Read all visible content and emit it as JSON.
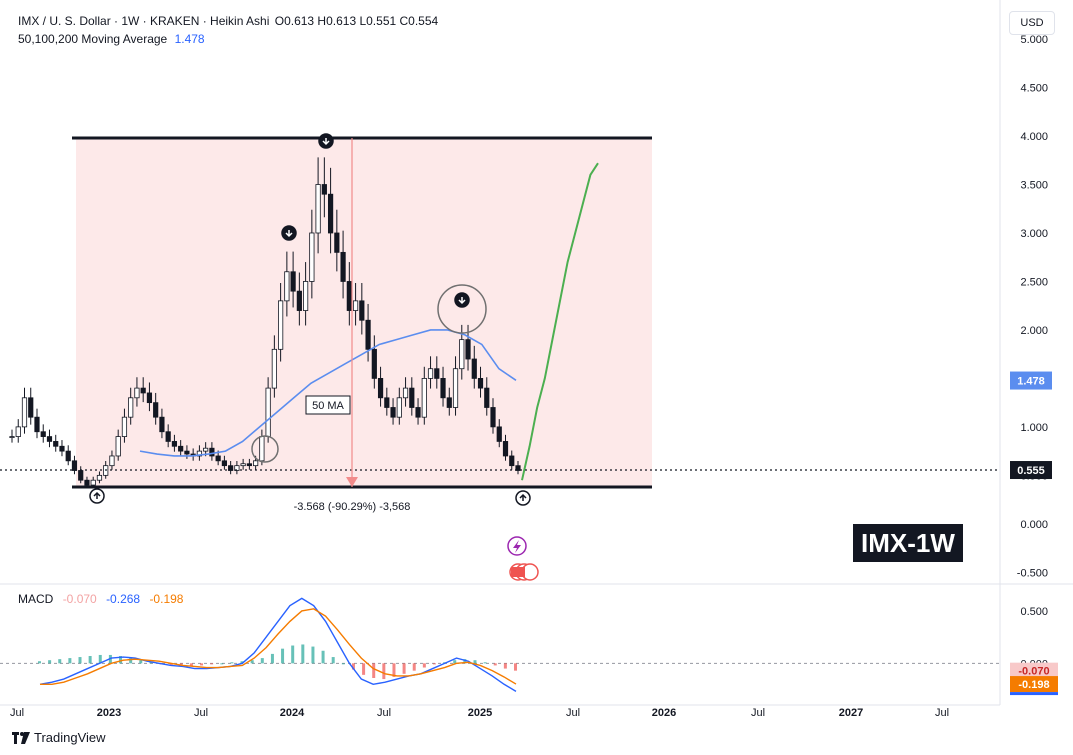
{
  "header": {
    "symbol_line": "IMX / U. S. Dollar · 1W · KRAKEN · Heikin Ashi",
    "ohlc": "O0.613  H0.613  L0.551  C0.554",
    "ma_label": "50,100,200 Moving Average",
    "ma_value": "1.478"
  },
  "currency_button": "USD",
  "watermark": "IMX-1W",
  "macd": {
    "label": "MACD",
    "hist_value": "-0.070",
    "macd_value": "-0.268",
    "signal_value": "-0.198"
  },
  "footer": {
    "brand": "TradingView"
  },
  "colors": {
    "up": "#26a69a",
    "down": "#ef5350",
    "ma": "#5b8def",
    "signal": "#f57c00",
    "macd": "#2962ff",
    "range_fill": "#fce4e4",
    "projection": "#4caf50"
  },
  "chart_data": [
    {
      "type": "candlestick",
      "title": "",
      "y_axis_ticks": [
        "5.000",
        "4.500",
        "4.000",
        "3.500",
        "3.000",
        "2.500",
        "2.000",
        "1.500",
        "1.000",
        "0.500",
        "0.000",
        "-0.500"
      ],
      "ylim": [
        -0.6,
        5.3
      ],
      "x_axis_ticks": [
        "Jul",
        "2023",
        "Jul",
        "2024",
        "Jul",
        "2025",
        "Jul",
        "2026",
        "Jul",
        "2027",
        "Jul"
      ],
      "x_axis_bold": [
        "2023",
        "2024",
        "2025",
        "2026",
        "2027"
      ],
      "price_labels": {
        "ma": "1.478",
        "last": "0.555"
      },
      "range_top": 3.98,
      "range_bottom": 0.38,
      "measure_text": "-3.568 (-90.29%) -3,568",
      "ma_tag": "50 MA",
      "close_series": [
        0.9,
        1.0,
        1.3,
        1.1,
        0.95,
        0.9,
        0.85,
        0.8,
        0.75,
        0.65,
        0.55,
        0.45,
        0.4,
        0.45,
        0.5,
        0.6,
        0.7,
        0.9,
        1.1,
        1.3,
        1.4,
        1.35,
        1.25,
        1.1,
        0.95,
        0.85,
        0.8,
        0.75,
        0.72,
        0.7,
        0.75,
        0.78,
        0.7,
        0.65,
        0.6,
        0.55,
        0.6,
        0.62,
        0.6,
        0.65,
        0.9,
        1.4,
        1.8,
        2.3,
        2.6,
        2.4,
        2.2,
        2.5,
        3.0,
        3.5,
        3.4,
        3.0,
        2.8,
        2.5,
        2.2,
        2.3,
        2.1,
        1.8,
        1.5,
        1.3,
        1.2,
        1.1,
        1.3,
        1.4,
        1.2,
        1.1,
        1.5,
        1.6,
        1.5,
        1.3,
        1.2,
        1.6,
        1.9,
        1.7,
        1.5,
        1.4,
        1.2,
        1.0,
        0.85,
        0.7,
        0.6,
        0.55
      ],
      "ma_series": [
        0.75,
        0.72,
        0.7,
        0.7,
        0.72,
        0.75,
        0.85,
        1.0,
        1.15,
        1.3,
        1.45,
        1.55,
        1.65,
        1.75,
        1.85,
        1.9,
        1.95,
        2.0,
        2.0,
        1.95,
        1.85,
        1.6,
        1.48
      ],
      "projection_series": [
        0.45,
        0.8,
        1.2,
        1.5,
        1.9,
        2.3,
        2.7,
        3.0,
        3.3,
        3.6,
        3.72
      ],
      "events": [
        {
          "kind": "down",
          "label": ""
        },
        {
          "kind": "down",
          "label": ""
        },
        {
          "kind": "down",
          "label": ""
        },
        {
          "kind": "up",
          "label": ""
        },
        {
          "kind": "up",
          "label": ""
        }
      ]
    },
    {
      "type": "bar",
      "title": "MACD",
      "y_axis_ticks": [
        "0.500",
        "0.000"
      ],
      "ylim": [
        -0.35,
        0.7
      ],
      "price_labels": {
        "hist": "-0.070",
        "signal": "-0.198"
      },
      "histogram": [
        0.02,
        0.03,
        0.04,
        0.05,
        0.06,
        0.07,
        0.08,
        0.08,
        0.07,
        0.05,
        0.03,
        0.01,
        -0.01,
        -0.02,
        -0.03,
        -0.03,
        -0.02,
        -0.01,
        0.0,
        0.01,
        0.02,
        0.03,
        0.05,
        0.09,
        0.14,
        0.17,
        0.18,
        0.16,
        0.12,
        0.06,
        0.0,
        -0.06,
        -0.11,
        -0.14,
        -0.15,
        -0.13,
        -0.1,
        -0.07,
        -0.04,
        -0.01,
        0.01,
        0.03,
        0.04,
        0.03,
        0.01,
        -0.02,
        -0.05,
        -0.07
      ],
      "macd_line": [
        -0.2,
        -0.18,
        -0.15,
        -0.1,
        -0.05,
        0.0,
        0.05,
        0.06,
        0.05,
        0.02,
        0.0,
        -0.02,
        -0.03,
        -0.05,
        -0.05,
        -0.04,
        -0.03,
        0.0,
        0.1,
        0.25,
        0.4,
        0.55,
        0.62,
        0.55,
        0.4,
        0.2,
        0.0,
        -0.15,
        -0.2,
        -0.18,
        -0.15,
        -0.12,
        -0.1,
        -0.05,
        0.0,
        0.05,
        0.02,
        -0.05,
        -0.12,
        -0.2,
        -0.268
      ],
      "signal_line": [
        -0.2,
        -0.2,
        -0.18,
        -0.14,
        -0.1,
        -0.05,
        0.0,
        0.03,
        0.04,
        0.03,
        0.02,
        0.0,
        -0.02,
        -0.03,
        -0.04,
        -0.04,
        -0.03,
        -0.02,
        0.05,
        0.15,
        0.28,
        0.4,
        0.5,
        0.52,
        0.45,
        0.32,
        0.18,
        0.05,
        -0.05,
        -0.1,
        -0.12,
        -0.12,
        -0.1,
        -0.07,
        -0.04,
        0.0,
        0.01,
        -0.02,
        -0.07,
        -0.13,
        -0.198
      ]
    }
  ]
}
